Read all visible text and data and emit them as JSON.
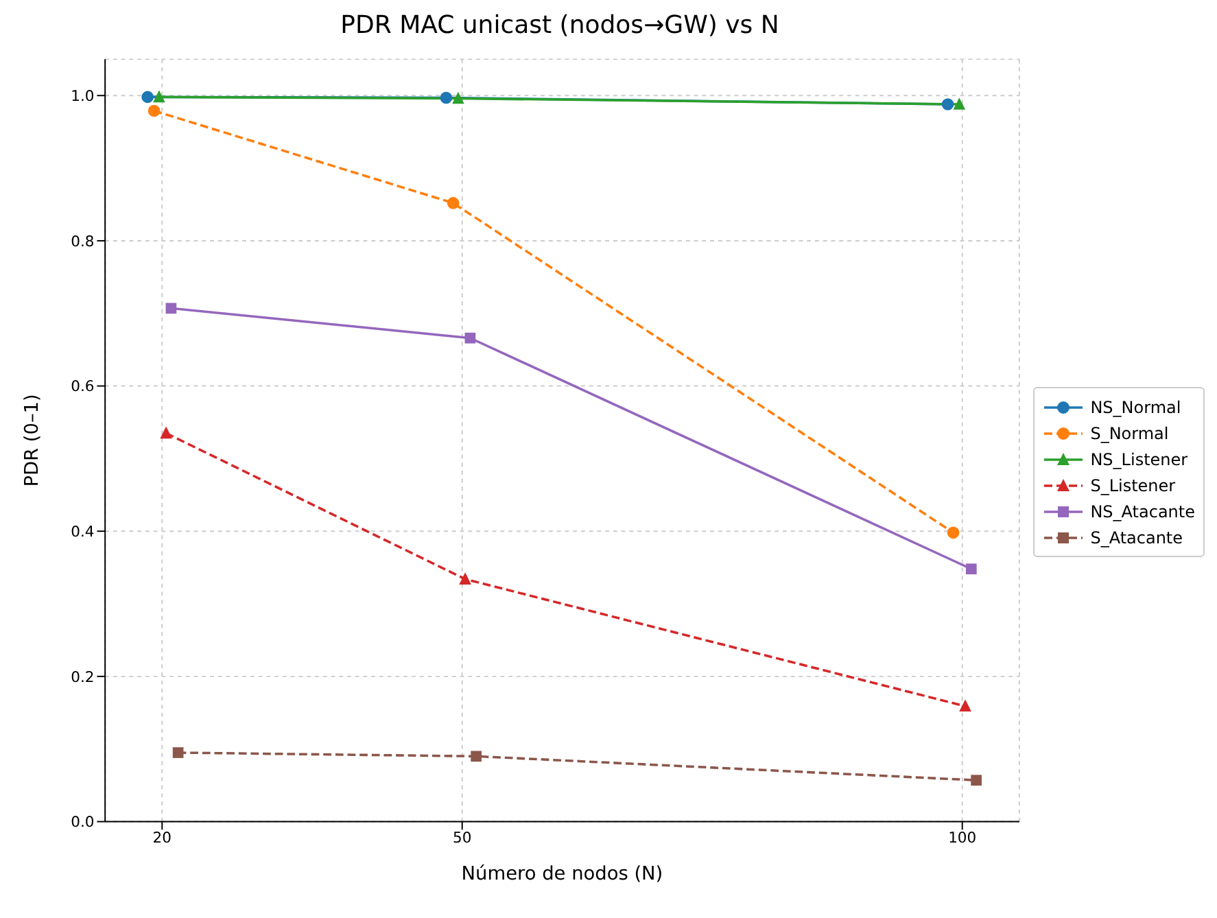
{
  "chart_data": {
    "type": "line",
    "title": "PDR MAC unicast (nodos→GW) vs N",
    "xlabel": "Número de nodos (N)",
    "ylabel": "PDR (0–1)",
    "xlim": [
      14.3,
      105.7
    ],
    "xticks": [
      20,
      50,
      100
    ],
    "ylim": [
      0,
      1.05
    ],
    "yticks": [
      {
        "value": 0,
        "label": "0.0"
      },
      0.2,
      0.4,
      0.6,
      0.8,
      {
        "value": 1,
        "label": "1.0"
      }
    ],
    "grid": true,
    "legend": "right",
    "series": [
      {
        "name": "NS_Normal",
        "color": "#1f77b4",
        "marker": "circle",
        "line_style": "solid",
        "x": [
          18.55,
          48.4,
          98.55
        ],
        "values": [
          0.998,
          0.997,
          0.988
        ]
      },
      {
        "name": "S_Normal",
        "color": "#ff7f0e",
        "marker": "circle",
        "line_style": "dashed",
        "x": [
          19.2,
          49.1,
          99.1
        ],
        "values": [
          0.979,
          0.852,
          0.398
        ]
      },
      {
        "name": "NS_Listener",
        "color": "#2ca02c",
        "marker": "triangle",
        "line_style": "solid",
        "x": [
          19.7,
          49.6,
          99.7
        ],
        "values": [
          0.998,
          0.996,
          0.988
        ]
      },
      {
        "name": "S_Listener",
        "color": "#d62728",
        "marker": "triangle",
        "line_style": "dashed",
        "x": [
          20.4,
          50.3,
          100.3
        ],
        "values": [
          0.535,
          0.334,
          0.159
        ]
      },
      {
        "name": "NS_Atacante",
        "color": "#9467bd",
        "marker": "square",
        "line_style": "solid",
        "x": [
          20.9,
          50.8,
          100.9
        ],
        "values": [
          0.707,
          0.666,
          0.348
        ]
      },
      {
        "name": "S_Atacante",
        "color": "#8c564b",
        "marker": "square",
        "line_style": "dashed",
        "x": [
          21.6,
          51.4,
          101.4
        ],
        "values": [
          0.095,
          0.09,
          0.057
        ]
      }
    ]
  }
}
